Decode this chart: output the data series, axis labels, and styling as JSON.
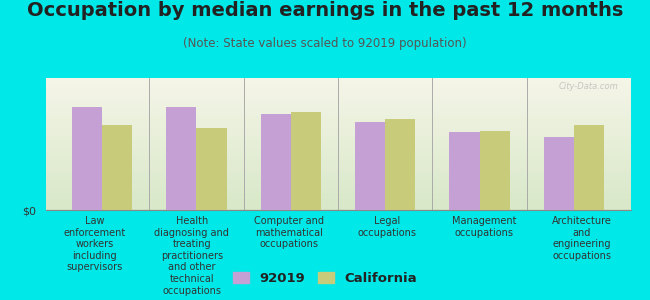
{
  "title": "Occupation by median earnings in the past 12 months",
  "subtitle": "(Note: State values scaled to 92019 population)",
  "categories": [
    "Law\nenforcement\nworkers\nincluding\nsupervisors",
    "Health\ndiagnosing and\ntreating\npractitioners\nand other\ntechnical\noccupations",
    "Computer and\nmathematical\noccupations",
    "Legal\noccupations",
    "Management\noccupations",
    "Architecture\nand\nengineering\noccupations"
  ],
  "values_92019": [
    0.82,
    0.82,
    0.76,
    0.7,
    0.62,
    0.58
  ],
  "values_california": [
    0.68,
    0.65,
    0.78,
    0.72,
    0.63,
    0.68
  ],
  "color_92019": "#c4a0d4",
  "color_california": "#c8cb7a",
  "background_color": "#00e8e8",
  "plot_bg_gradient_top": "#f5f5e8",
  "plot_bg_gradient_bottom": "#d8e8c8",
  "bar_width": 0.32,
  "ylabel": "$0",
  "legend_92019": "92019",
  "legend_california": "California",
  "watermark": "City-Data.com",
  "title_fontsize": 14,
  "subtitle_fontsize": 8.5,
  "label_fontsize": 7.0
}
